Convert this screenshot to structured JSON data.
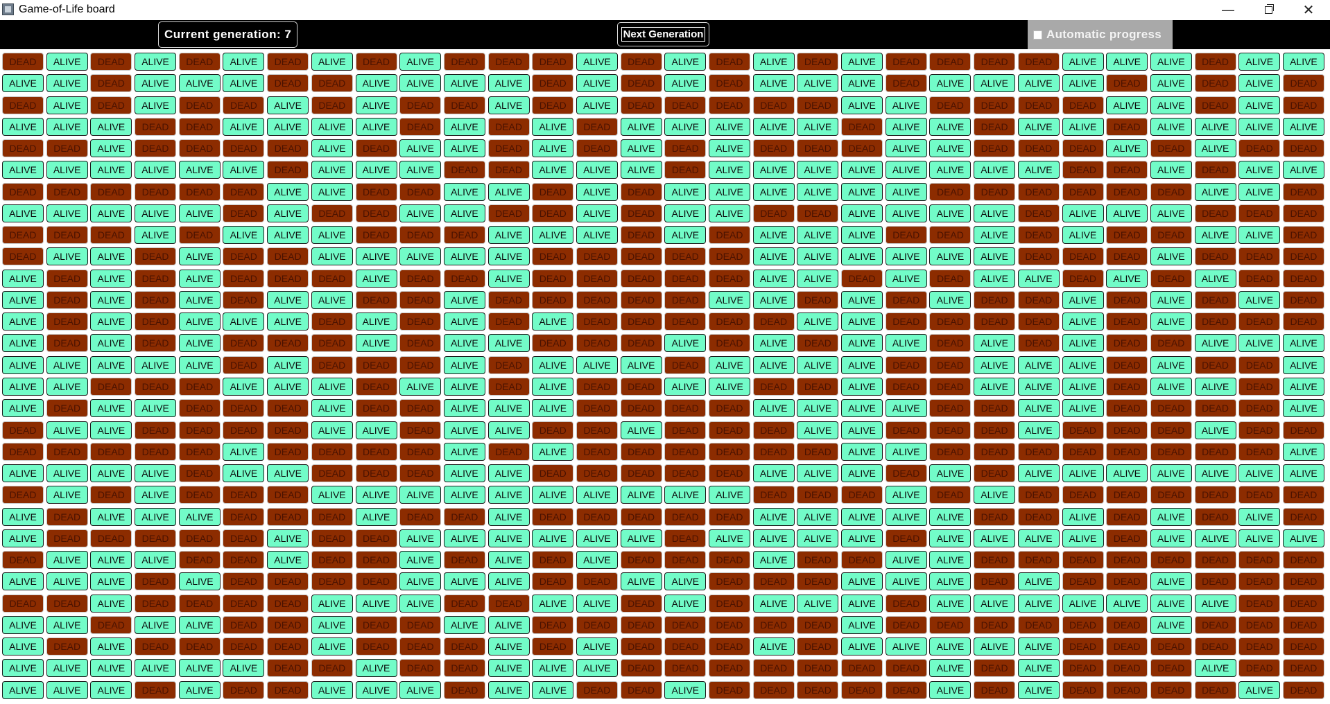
{
  "window": {
    "title": "Game-of-Life board"
  },
  "toolbar": {
    "generation_label": "Current generation: 7",
    "next_button_label": "Next Generation",
    "auto_label": "Automatic progress",
    "auto_checked": false
  },
  "board": {
    "alive_label": "ALIVE",
    "dead_label": "DEAD",
    "colors": {
      "alive": "#72fcc8",
      "dead": "#8c2c00"
    },
    "rows": [
      "DADADADADADDDADADADADDDDAAADAA",
      "AADAAADDAAAADADADAAADAAAADADAD",
      "DADADDADADDADADDDDDAADDDDAADAD",
      "AAADDAAAADADADAAAAADAADAADAAAA",
      "DDADDDDADAADADADADDDAADDDADADD",
      "AAAAAADAAADDAAADAAAAAAAADDADAA",
      "DDDDDDAADDAADADAAAAAADDDDDDAAD",
      "AAAAADADDAADDADAADDAAAADAAADDD",
      "DDDADAAADDDAAADADAAADDADADDAAD",
      "DAADADDAAAAADDDDDAAAAAADDDADDD",
      "ADADADDDADDADDDDDAADADAADADADD",
      "ADADADAADDADDDDDAADADADDADADAD",
      "ADADAAADADADADDDDDAADDDDADADDD",
      "ADADADDDADAADDDADADAADADADDAAA",
      "AAAAADADDDADAAADAAAADDAAADADDA",
      "AADDDAAADAADADDAADDADDAAADAADA",
      "ADAADDDADDAAADDDDAAAADDAADDDDA",
      "DAADDDDAADAADDADDDAADDDADDDADD",
      "DDDDDADDDDADADDDDDDAADDDDDDDDA",
      "AAAADAADDDAADDDDDAAADADAAAAAAA",
      "DADADDDAAAAAAAAAADDDADADDDDDDD",
      "ADAAADDDADDADDDDDAAAAADDADADAD",
      "ADDDDDADDAAAAAADAAAADAAAADAAAA",
      "DAAADDADDADADADDDADDAADDDDDDDD",
      "AAADADDDDAAADDAADDDAAADADDADDD",
      "DDADDDDAAADDAADADAAADAAAAAAADD",
      "AADAADDADDAADDDDDDDADDDDDDADDD",
      "ADADDDDADDDADADDDADAAAAADDDDDD",
      "AAAAAADDADDAAADDDDDDDADADDDADD",
      "AAADADDAAADAADDADDDDDADADDDDAD"
    ]
  }
}
